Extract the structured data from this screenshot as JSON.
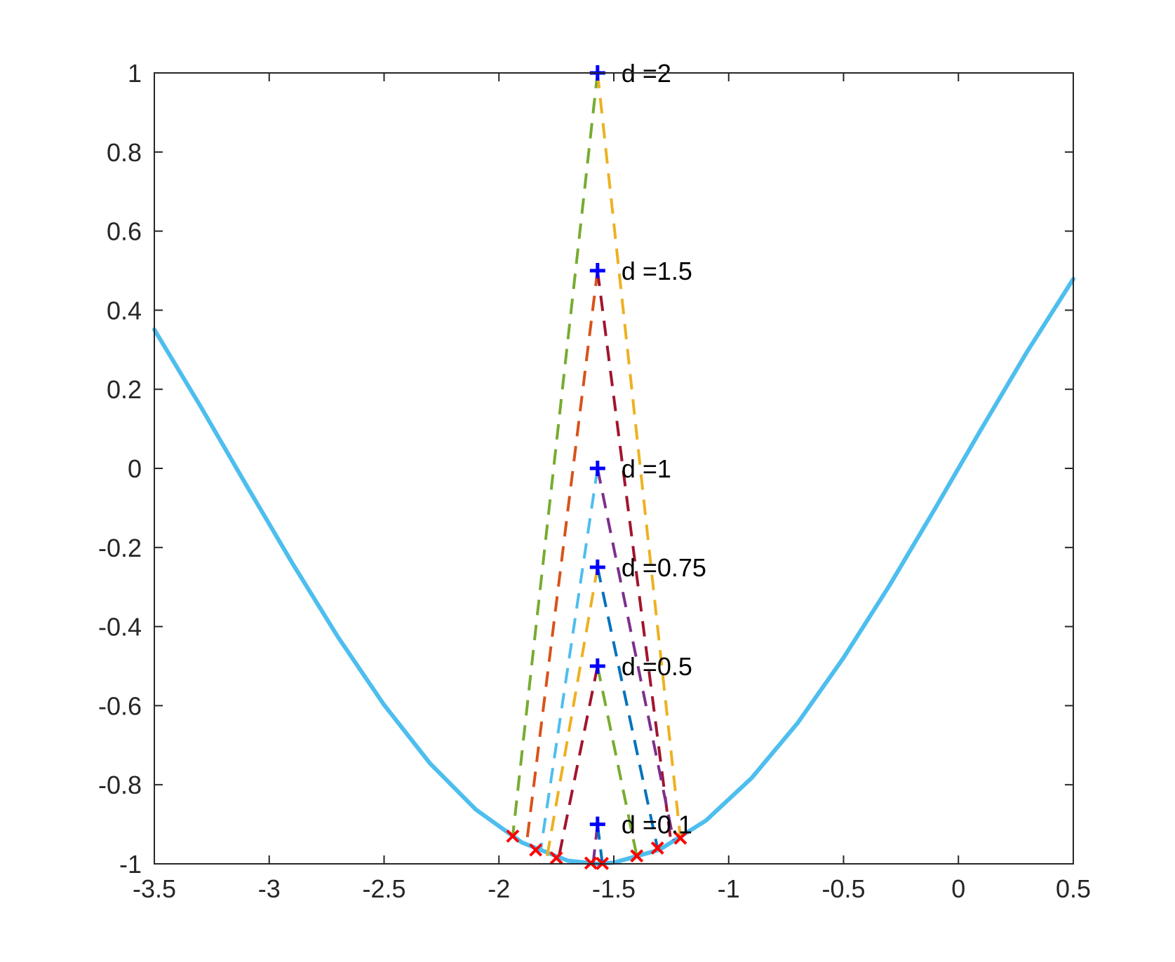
{
  "chart_data": {
    "type": "line",
    "title": "",
    "xlabel": "",
    "ylabel": "",
    "xlim": [
      -3.5,
      0.5
    ],
    "ylim": [
      -1,
      1
    ],
    "grid": false,
    "box": true,
    "x_ticks": [
      {
        "value": -3.5,
        "label": "-3.5"
      },
      {
        "value": -3,
        "label": "-3"
      },
      {
        "value": -2.5,
        "label": "-2.5"
      },
      {
        "value": -2,
        "label": "-2"
      },
      {
        "value": -1.5,
        "label": "-1.5"
      },
      {
        "value": -1,
        "label": "-1"
      },
      {
        "value": -0.5,
        "label": "-0.5"
      },
      {
        "value": 0,
        "label": "0"
      },
      {
        "value": 0.5,
        "label": "0.5"
      }
    ],
    "y_ticks": [
      {
        "value": -1,
        "label": "-1"
      },
      {
        "value": -0.8,
        "label": "-0.8"
      },
      {
        "value": -0.6,
        "label": "-0.6"
      },
      {
        "value": -0.4,
        "label": "-0.4"
      },
      {
        "value": -0.2,
        "label": "-0.2"
      },
      {
        "value": 0,
        "label": "0"
      },
      {
        "value": 0.2,
        "label": "0.2"
      },
      {
        "value": 0.4,
        "label": "0.4"
      },
      {
        "value": 0.6,
        "label": "0.6"
      },
      {
        "value": 0.8,
        "label": "0.8"
      },
      {
        "value": 1,
        "label": "1"
      }
    ],
    "curve": {
      "color": "#4DBEEE",
      "x": [
        -3.5,
        -3.3,
        -3.1,
        -2.9,
        -2.7,
        -2.5,
        -2.3,
        -2.1,
        -1.9,
        -1.7,
        -1.5708,
        -1.5,
        -1.3,
        -1.1,
        -0.9,
        -0.7,
        -0.5,
        -0.3,
        -0.1,
        0.1,
        0.3,
        0.5
      ],
      "y": [
        0.351,
        0.158,
        -0.042,
        -0.239,
        -0.427,
        -0.598,
        -0.746,
        -0.863,
        -0.946,
        -0.992,
        -1.0,
        -0.997,
        -0.964,
        -0.891,
        -0.783,
        -0.644,
        -0.479,
        -0.296,
        -0.1,
        0.1,
        0.296,
        0.479
      ]
    },
    "marker_colors": {
      "center": "#0000FF",
      "foot": "#FF0000"
    },
    "center_points": [
      {
        "x": -1.5708,
        "y": 1.0,
        "label": "d =2"
      },
      {
        "x": -1.5708,
        "y": 0.5,
        "label": "d =1.5"
      },
      {
        "x": -1.5708,
        "y": 0.0,
        "label": "d =1"
      },
      {
        "x": -1.5708,
        "y": -0.25,
        "label": "d =0.75"
      },
      {
        "x": -1.5708,
        "y": -0.5,
        "label": "d =0.5"
      },
      {
        "x": -1.5708,
        "y": -0.9,
        "label": "d =0.1"
      }
    ],
    "segments": [
      {
        "color": "#77AC30",
        "from": [
          -1.5708,
          1.0
        ],
        "to": [
          -1.94,
          -0.93
        ]
      },
      {
        "color": "#EDB120",
        "from": [
          -1.5708,
          1.0
        ],
        "to": [
          -1.21,
          -0.935
        ]
      },
      {
        "color": "#D95319",
        "from": [
          -1.5708,
          0.5
        ],
        "to": [
          -1.88,
          -0.95
        ]
      },
      {
        "color": "#A2142F",
        "from": [
          -1.5708,
          0.5
        ],
        "to": [
          -1.25,
          -0.95
        ]
      },
      {
        "color": "#4DBEEE",
        "from": [
          -1.5708,
          0.0
        ],
        "to": [
          -1.82,
          -0.97
        ]
      },
      {
        "color": "#7E2F8E",
        "from": [
          -1.5708,
          0.0
        ],
        "to": [
          -1.24,
          -0.94
        ]
      },
      {
        "color": "#EDB120",
        "from": [
          -1.5708,
          -0.25
        ],
        "to": [
          -1.79,
          -0.98
        ]
      },
      {
        "color": "#0072BD",
        "from": [
          -1.5708,
          -0.25
        ],
        "to": [
          -1.31,
          -0.96
        ]
      },
      {
        "color": "#A2142F",
        "from": [
          -1.5708,
          -0.5
        ],
        "to": [
          -1.74,
          -0.985
        ]
      },
      {
        "color": "#77AC30",
        "from": [
          -1.5708,
          -0.5
        ],
        "to": [
          -1.4,
          -0.98
        ]
      },
      {
        "color": "#7E2F8E",
        "from": [
          -1.5708,
          -0.9
        ],
        "to": [
          -1.59,
          -0.999
        ]
      },
      {
        "color": "#0072BD",
        "from": [
          -1.5708,
          -0.9
        ],
        "to": [
          -1.55,
          -0.999
        ]
      }
    ],
    "foot_points": [
      {
        "x": -1.94,
        "y": -0.93
      },
      {
        "x": -1.84,
        "y": -0.965
      },
      {
        "x": -1.75,
        "y": -0.985
      },
      {
        "x": -1.6,
        "y": -0.998
      },
      {
        "x": -1.55,
        "y": -0.999
      },
      {
        "x": -1.4,
        "y": -0.98
      },
      {
        "x": -1.31,
        "y": -0.96
      },
      {
        "x": -1.21,
        "y": -0.935
      }
    ]
  }
}
